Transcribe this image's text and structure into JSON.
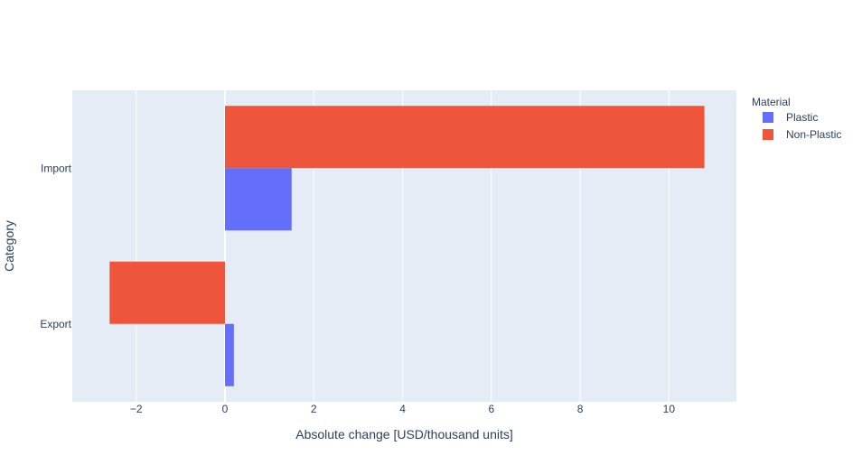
{
  "chart_data": {
    "type": "bar",
    "orientation": "horizontal",
    "barmode": "group",
    "categories": [
      "Export",
      "Import"
    ],
    "series": [
      {
        "name": "Plastic",
        "color": "#636efa",
        "values": [
          0.2,
          1.5
        ]
      },
      {
        "name": "Non-Plastic",
        "color": "#ef553b",
        "values": [
          -2.6,
          10.8
        ]
      }
    ],
    "xlabel": "Absolute change [USD/thousand units]",
    "ylabel": "Category",
    "xlim": [
      -3.44,
      11.52
    ],
    "xticks": [
      -2,
      0,
      2,
      4,
      6,
      8,
      10
    ],
    "xtick_labels": [
      "−2",
      "0",
      "2",
      "4",
      "6",
      "8",
      "10"
    ],
    "legend_title": "Material",
    "legend_position": "top-right",
    "plot_background": "#e5ecf6",
    "grid": true
  }
}
